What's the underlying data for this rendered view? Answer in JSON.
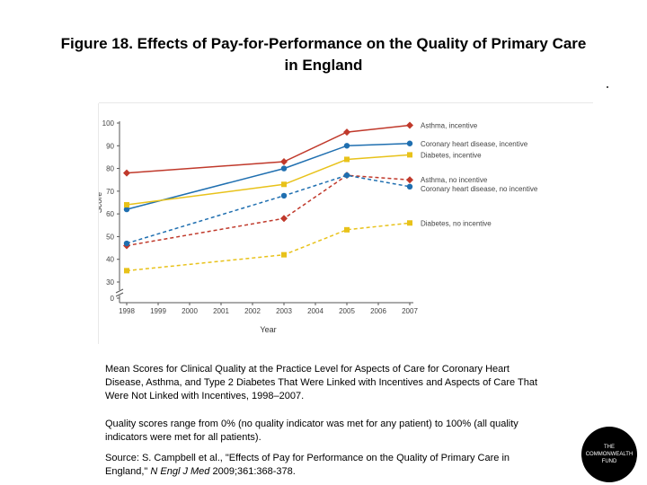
{
  "header": {
    "title_line1": "Figure 18. Effects of Pay-for-Performance on the Quality of Primary Care",
    "title_line2": "in England"
  },
  "chart_data": {
    "type": "line",
    "xlabel": "Year",
    "ylabel": "Score",
    "x_ticks": [
      1998,
      1999,
      2000,
      2001,
      2002,
      2003,
      2004,
      2005,
      2006,
      2007
    ],
    "y_ticks": [
      0,
      30,
      40,
      50,
      60,
      70,
      80,
      90,
      100
    ],
    "xlim": [
      1998,
      2007
    ],
    "ylim": [
      0,
      100
    ],
    "axis_break": [
      0,
      30
    ],
    "grid": false,
    "legend": "inline-right",
    "series": [
      {
        "name": "Asthma, incentive",
        "color": "#c0392b",
        "marker": "diamond",
        "dashed": false,
        "points": [
          [
            1998,
            78
          ],
          [
            2003,
            83
          ],
          [
            2005,
            96
          ],
          [
            2007,
            99
          ]
        ]
      },
      {
        "name": "Coronary heart disease, incentive",
        "color": "#1f6fb0",
        "marker": "circle",
        "dashed": false,
        "points": [
          [
            1998,
            62
          ],
          [
            2003,
            80
          ],
          [
            2005,
            90
          ],
          [
            2007,
            91
          ]
        ]
      },
      {
        "name": "Diabetes, incentive",
        "color": "#e8c21a",
        "marker": "square",
        "dashed": false,
        "points": [
          [
            1998,
            64
          ],
          [
            2003,
            73
          ],
          [
            2005,
            84
          ],
          [
            2007,
            86
          ]
        ]
      },
      {
        "name": "Asthma, no incentive",
        "color": "#c0392b",
        "marker": "diamond",
        "dashed": true,
        "points": [
          [
            1998,
            46
          ],
          [
            2003,
            58
          ],
          [
            2005,
            77
          ],
          [
            2007,
            75
          ]
        ]
      },
      {
        "name": "Coronary heart disease, no incentive",
        "color": "#1f6fb0",
        "marker": "circle",
        "dashed": true,
        "points": [
          [
            1998,
            47
          ],
          [
            2003,
            68
          ],
          [
            2005,
            77
          ],
          [
            2007,
            72
          ]
        ]
      },
      {
        "name": "Diabetes, no incentive",
        "color": "#e8c21a",
        "marker": "square",
        "dashed": true,
        "points": [
          [
            1998,
            35
          ],
          [
            2003,
            42
          ],
          [
            2005,
            53
          ],
          [
            2007,
            56
          ]
        ]
      }
    ]
  },
  "captions": {
    "description": "Mean Scores for Clinical Quality at the Practice Level for Aspects of Care for Coronary Heart Disease, Asthma, and Type 2 Diabetes That Were Linked with Incentives and Aspects of Care That Were Not Linked with Incentives, 1998–2007.",
    "range_note": "Quality scores range from 0% (no quality indicator was met for any patient) to 100% (all quality indicators were met for all patients).",
    "source_prefix": "Source: S. Campbell et al., \"Effects of Pay for Performance on the Quality of Primary Care in England,\" ",
    "source_journal": "N Engl J Med",
    "source_suffix": " 2009;361:368-378."
  },
  "logo": {
    "line1": "THE",
    "line2": "COMMONWEALTH",
    "line3": "FUND"
  }
}
